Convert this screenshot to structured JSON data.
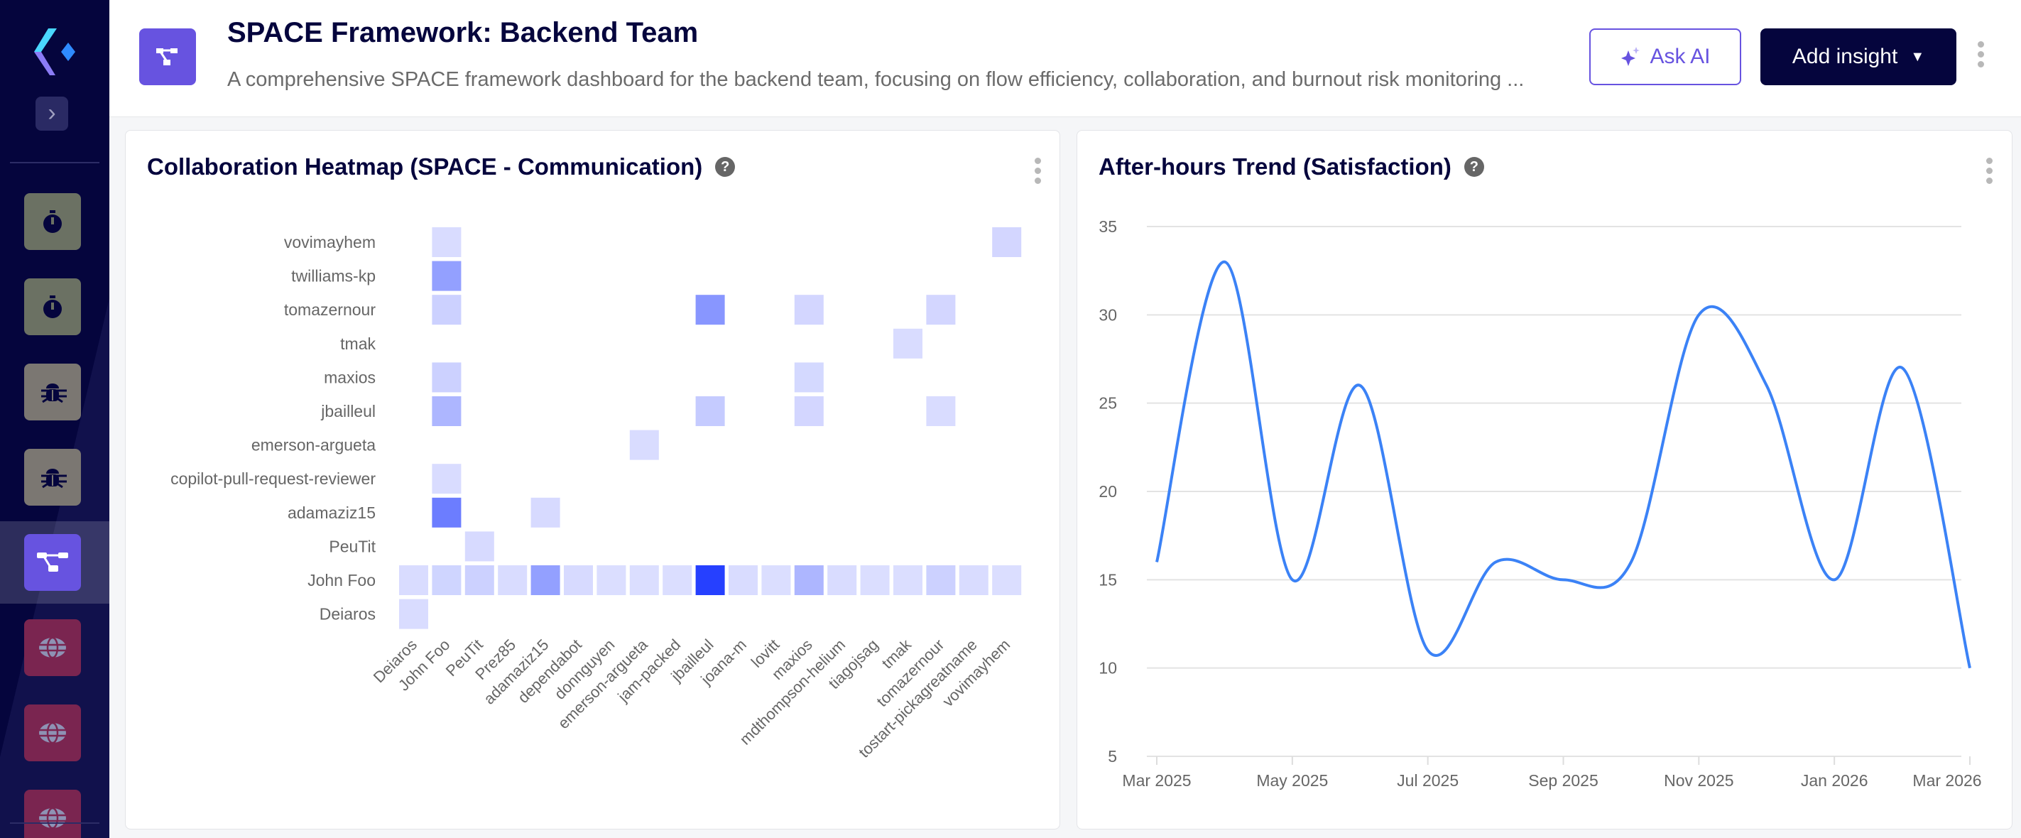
{
  "header": {
    "title": "SPACE Framework: Backend Team",
    "subtitle": "A comprehensive SPACE framework dashboard for the backend team, focusing on flow efficiency, collaboration, and burnout risk monitoring ...",
    "ask_ai": "Ask AI",
    "add_insight": "Add insight",
    "icon": "network-icon"
  },
  "sidebar": {
    "items": [
      {
        "icon": "timer-icon",
        "color": "#6b7163"
      },
      {
        "icon": "timer-icon",
        "color": "#6b7163"
      },
      {
        "icon": "bug-icon",
        "color": "#7b7772"
      },
      {
        "icon": "bug-icon",
        "color": "#7b7772"
      },
      {
        "icon": "network-icon",
        "color": "#6753e0",
        "active": true
      },
      {
        "icon": "globe-icon",
        "color": "#7a2550"
      },
      {
        "icon": "globe-icon",
        "color": "#7a2550"
      },
      {
        "icon": "globe-icon",
        "color": "#7a2550"
      }
    ]
  },
  "heatmap_card": {
    "title": "Collaboration Heatmap (SPACE - Communication)"
  },
  "trend_card": {
    "title": "After-hours Trend (Satisfaction)"
  },
  "chart_data": [
    {
      "type": "heatmap",
      "title": "Collaboration Heatmap (SPACE - Communication)",
      "color_max": "#1b36ff",
      "rows": [
        "vovimayhem",
        "twilliams-kp",
        "tomazernour",
        "tmak",
        "maxios",
        "jbailleul",
        "emerson-argueta",
        "copilot-pull-request-reviewer",
        "adamaziz15",
        "PeuTit",
        "John Foo",
        "Deiaros"
      ],
      "columns": [
        "Deiaros",
        "John Foo",
        "PeuTit",
        "Prez85",
        "adamaziz15",
        "dependabot",
        "donnguyen",
        "emerson-argueta",
        "jam-packed",
        "jbailleul",
        "joana-m",
        "lovitt",
        "maxios",
        "mdthompson-helium",
        "tiagojsag",
        "tmak",
        "tomazernour",
        "tostart-pickagreatname",
        "vovimayhem"
      ],
      "values": [
        [
          0,
          0.12,
          0,
          0,
          0,
          0,
          0,
          0,
          0,
          0,
          0,
          0,
          0,
          0,
          0,
          0,
          0,
          0,
          0.15
        ],
        [
          0,
          0.5,
          0,
          0,
          0,
          0,
          0,
          0,
          0,
          0,
          0,
          0,
          0,
          0,
          0,
          0,
          0,
          0,
          0
        ],
        [
          0,
          0.18,
          0,
          0,
          0,
          0,
          0,
          0,
          0,
          0.55,
          0,
          0,
          0.15,
          0,
          0,
          0,
          0.15,
          0,
          0
        ],
        [
          0,
          0,
          0,
          0,
          0,
          0,
          0,
          0,
          0,
          0,
          0,
          0,
          0,
          0,
          0,
          0.12,
          0,
          0,
          0
        ],
        [
          0,
          0.18,
          0,
          0,
          0,
          0,
          0,
          0,
          0,
          0,
          0,
          0,
          0.2,
          0,
          0,
          0,
          0,
          0,
          0
        ],
        [
          0,
          0.38,
          0,
          0,
          0,
          0,
          0,
          0,
          0,
          0.27,
          0,
          0,
          0.15,
          0,
          0,
          0,
          0.12,
          0,
          0
        ],
        [
          0,
          0,
          0,
          0,
          0,
          0,
          0,
          0.12,
          0,
          0,
          0,
          0,
          0,
          0,
          0,
          0,
          0,
          0,
          0
        ],
        [
          0,
          0.12,
          0,
          0,
          0,
          0,
          0,
          0,
          0,
          0,
          0,
          0,
          0,
          0,
          0,
          0,
          0,
          0,
          0
        ],
        [
          0,
          0.68,
          0,
          0,
          0.13,
          0,
          0,
          0,
          0,
          0,
          0,
          0,
          0,
          0,
          0,
          0,
          0,
          0,
          0
        ],
        [
          0,
          0,
          0.13,
          0,
          0,
          0,
          0,
          0,
          0,
          0,
          0,
          0,
          0,
          0,
          0,
          0,
          0,
          0,
          0
        ],
        [
          0.12,
          0.22,
          0.18,
          0.12,
          0.5,
          0.13,
          0.11,
          0.11,
          0.11,
          1.0,
          0.12,
          0.11,
          0.38,
          0.12,
          0.11,
          0.11,
          0.18,
          0.12,
          0.11
        ],
        [
          0.12,
          0,
          0,
          0,
          0,
          0,
          0,
          0,
          0,
          0,
          0,
          0,
          0,
          0,
          0,
          0,
          0,
          0,
          0
        ]
      ]
    },
    {
      "type": "line",
      "title": "After-hours Trend (Satisfaction)",
      "color": "#3b82f6",
      "smooth": true,
      "grid": true,
      "x": [
        "2025-03",
        "2025-04",
        "2025-05",
        "2025-06",
        "2025-07",
        "2025-08",
        "2025-09",
        "2025-10",
        "2025-11",
        "2025-12",
        "2026-01",
        "2026-02",
        "2026-03"
      ],
      "y": [
        16,
        33,
        15,
        26,
        11,
        16,
        15,
        16,
        30,
        26,
        15,
        27,
        10
      ],
      "ylim": [
        5,
        35
      ],
      "yticks": [
        "5",
        "10",
        "15",
        "20",
        "25",
        "30",
        "35"
      ],
      "xticks": [
        "Mar 2025",
        "May 2025",
        "Jul 2025",
        "Sep 2025",
        "Nov 2025",
        "Jan 2026",
        "Mar 2026"
      ]
    }
  ]
}
